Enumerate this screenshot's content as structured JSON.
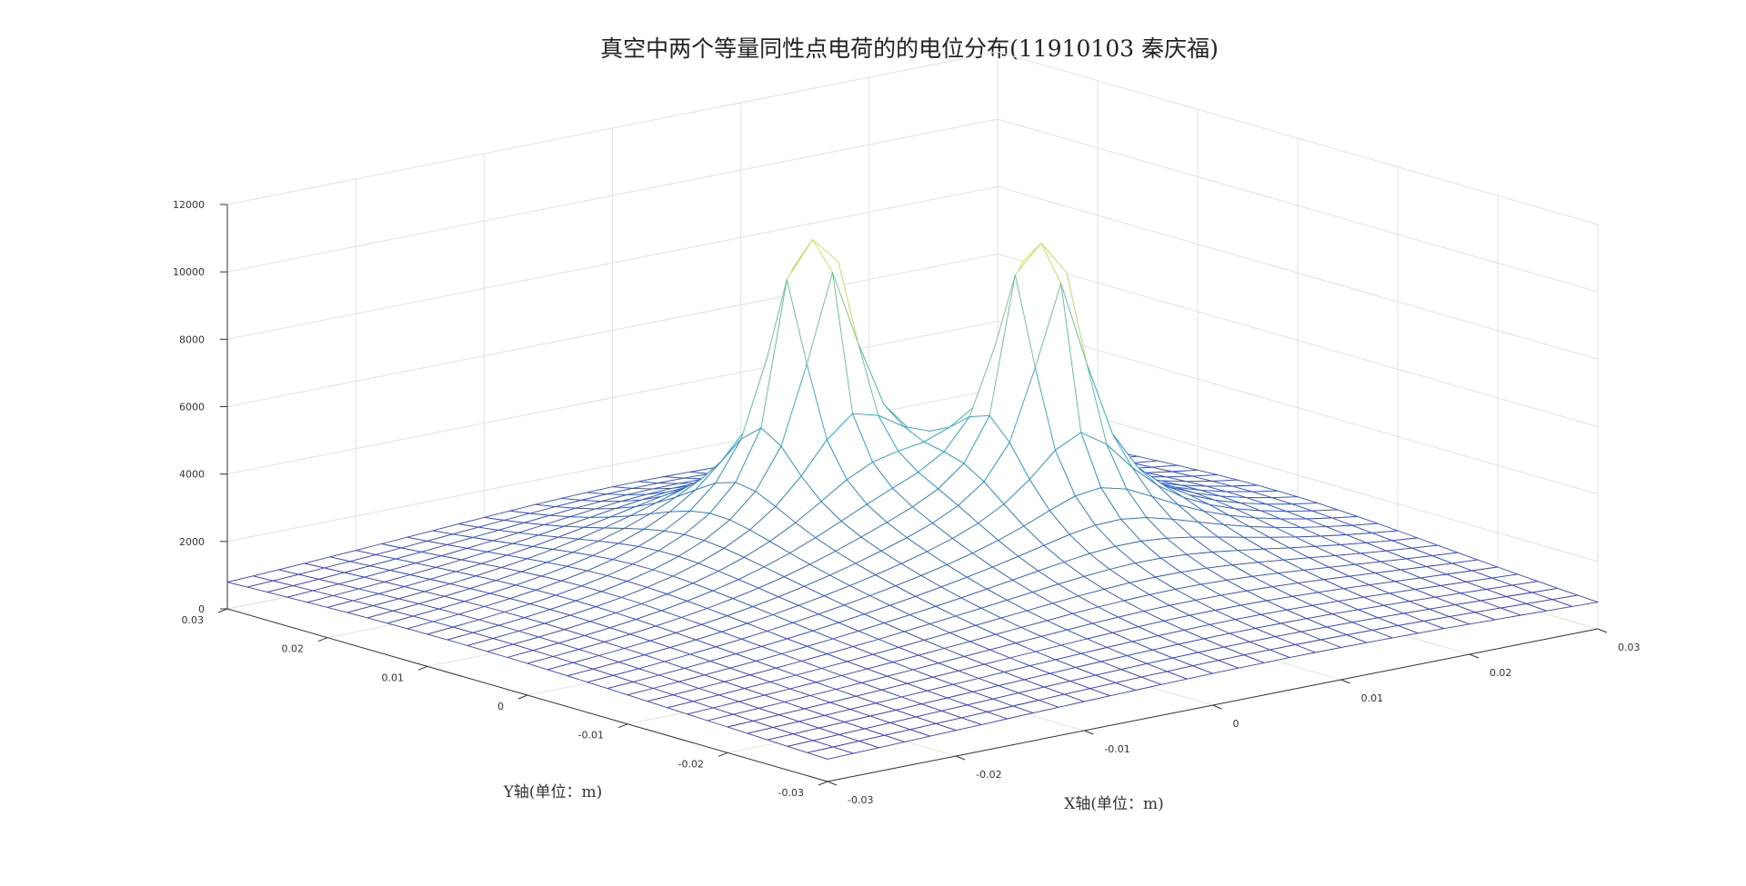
{
  "chart_data": {
    "type": "surface-mesh",
    "title": "真空中两个等量同性点电荷的的电位分布(11910103 秦庆福)",
    "xlabel": "X轴(单位：m)",
    "ylabel": "Y轴(单位：m)",
    "zlabel": "",
    "xlim": [
      -0.03,
      0.03
    ],
    "ylim": [
      -0.03,
      0.03
    ],
    "zlim": [
      0,
      12000
    ],
    "x_ticks": [
      "-0.03",
      "-0.02",
      "-0.01",
      "0",
      "0.01",
      "0.02",
      "0.03"
    ],
    "y_ticks": [
      "-0.03",
      "-0.02",
      "-0.01",
      "0",
      "0.01",
      "0.02",
      "0.03"
    ],
    "z_ticks": [
      "0",
      "2000",
      "4000",
      "6000",
      "8000",
      "10000",
      "12000"
    ],
    "grid": true,
    "mesh_resolution": 31,
    "charges": [
      {
        "x": 0.0,
        "y": 0.01,
        "peak_value": 10400
      },
      {
        "x": 0.01,
        "y": 0.0,
        "peak_value": 10400
      }
    ],
    "colors": {
      "low": "#3b28d6",
      "mid": "#21a8c8",
      "high": "#f4f03a",
      "grid": "#e2e2e2",
      "axis": "#333333"
    }
  }
}
